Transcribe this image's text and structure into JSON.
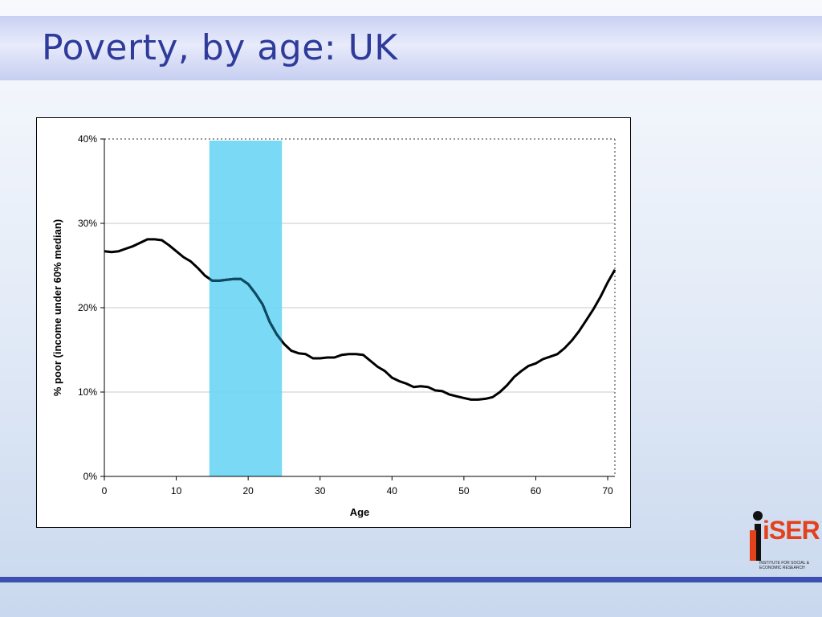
{
  "slide": {
    "title": "Poverty, by age: UK"
  },
  "logo": {
    "word": "iSER",
    "subtitle": "Institute for Social & Economic Research",
    "brand_color": "#e3401c"
  },
  "colors": {
    "title": "#2f3b9a",
    "rule": "#3d4fb0",
    "highlight": "#6fd7f5",
    "line": "#000000"
  },
  "chart_data": {
    "type": "line",
    "title": "",
    "xlabel": "Age",
    "ylabel": "% poor (income under 60% median)",
    "xlim": [
      0,
      71
    ],
    "ylim": [
      0,
      40
    ],
    "x_ticks": [
      0,
      10,
      20,
      30,
      40,
      50,
      60,
      70
    ],
    "y_ticks": [
      0,
      10,
      20,
      30,
      40
    ],
    "y_tick_labels": [
      "0%",
      "10%",
      "20%",
      "30%",
      "40%"
    ],
    "grid": "horizontal",
    "highlight_band": {
      "x_start": 14.6,
      "x_end": 24.7
    },
    "series": [
      {
        "x": [
          0,
          1,
          2,
          3,
          4,
          5,
          6,
          7,
          8,
          9,
          10,
          11,
          12,
          13,
          14,
          15,
          16,
          17,
          18,
          19,
          20,
          21,
          22,
          23,
          24,
          25,
          26,
          27,
          28,
          29,
          30,
          31,
          32,
          33,
          34,
          35,
          36,
          37,
          38,
          39,
          40,
          41,
          42,
          43,
          44,
          45,
          46,
          47,
          48,
          49,
          50,
          51,
          52,
          53,
          54,
          55,
          56,
          57,
          58,
          59,
          60,
          61,
          62,
          63,
          64,
          65,
          66,
          67,
          68,
          69,
          70,
          71
        ],
        "values": [
          26.7,
          26.6,
          26.7,
          27.0,
          27.3,
          27.7,
          28.1,
          28.1,
          28.0,
          27.4,
          26.7,
          26.0,
          25.5,
          24.7,
          23.8,
          23.2,
          23.2,
          23.3,
          23.4,
          23.4,
          22.8,
          21.7,
          20.4,
          18.3,
          16.8,
          15.7,
          14.9,
          14.6,
          14.5,
          14.0,
          14.0,
          14.1,
          14.1,
          14.4,
          14.5,
          14.5,
          14.4,
          13.7,
          13.0,
          12.5,
          11.7,
          11.3,
          11.0,
          10.6,
          10.7,
          10.6,
          10.2,
          10.1,
          9.7,
          9.5,
          9.3,
          9.1,
          9.1,
          9.2,
          9.4,
          10.0,
          10.8,
          11.8,
          12.5,
          13.1,
          13.4,
          13.9,
          14.2,
          14.5,
          15.2,
          16.1,
          17.2,
          18.5,
          19.8,
          21.3,
          23.0,
          24.5
        ]
      }
    ]
  }
}
